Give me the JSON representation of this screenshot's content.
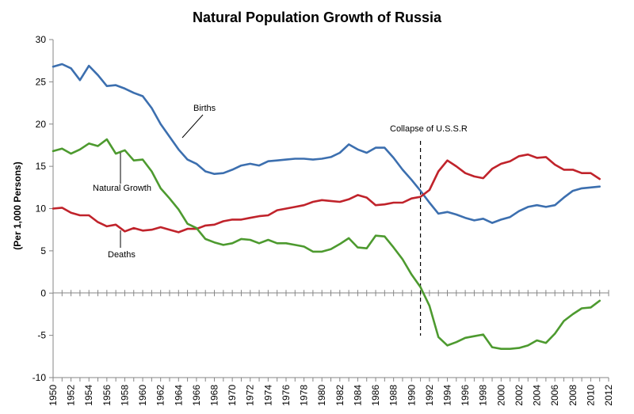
{
  "chart_data": {
    "type": "line",
    "title": "Natural Population Growth of Russia",
    "ylabel": "(Per 1,000 Persons)",
    "xlabel": "",
    "xlim": [
      1950,
      2012
    ],
    "ylim": [
      -10,
      30
    ],
    "y_ticks": [
      -10,
      -5,
      0,
      5,
      10,
      15,
      20,
      25,
      30
    ],
    "x_ticks": [
      1950,
      1952,
      1954,
      1956,
      1958,
      1960,
      1962,
      1964,
      1966,
      1968,
      1970,
      1972,
      1974,
      1976,
      1978,
      1980,
      1982,
      1984,
      1986,
      1988,
      1990,
      1992,
      1994,
      1996,
      1998,
      2000,
      2002,
      2004,
      2006,
      2008,
      2010,
      2012
    ],
    "grid": false,
    "legend": "none",
    "x": [
      1950,
      1951,
      1952,
      1953,
      1954,
      1955,
      1956,
      1957,
      1958,
      1959,
      1960,
      1961,
      1962,
      1963,
      1964,
      1965,
      1966,
      1967,
      1968,
      1969,
      1970,
      1971,
      1972,
      1973,
      1974,
      1975,
      1976,
      1977,
      1978,
      1979,
      1980,
      1981,
      1982,
      1983,
      1984,
      1985,
      1986,
      1987,
      1988,
      1989,
      1990,
      1991,
      1992,
      1993,
      1994,
      1995,
      1996,
      1997,
      1998,
      1999,
      2000,
      2001,
      2002,
      2003,
      2004,
      2005,
      2006,
      2007,
      2008,
      2009,
      2010,
      2011
    ],
    "series": [
      {
        "name": "Births",
        "color": "#3C6FAF",
        "values": [
          26.8,
          27.1,
          26.6,
          25.2,
          26.9,
          25.8,
          24.5,
          24.6,
          24.2,
          23.7,
          23.3,
          21.9,
          20.0,
          18.5,
          17.0,
          15.8,
          15.3,
          14.4,
          14.1,
          14.2,
          14.6,
          15.1,
          15.3,
          15.1,
          15.6,
          15.7,
          15.8,
          15.9,
          15.9,
          15.8,
          15.9,
          16.1,
          16.6,
          17.6,
          17.0,
          16.6,
          17.2,
          17.2,
          16.0,
          14.6,
          13.4,
          12.1,
          10.7,
          9.4,
          9.6,
          9.3,
          8.9,
          8.6,
          8.8,
          8.3,
          8.7,
          9.0,
          9.7,
          10.2,
          10.4,
          10.2,
          10.4,
          11.3,
          12.1,
          12.4,
          12.5,
          12.6
        ]
      },
      {
        "name": "Deaths",
        "color": "#C0232B",
        "values": [
          10.0,
          10.1,
          9.5,
          9.2,
          9.2,
          8.4,
          7.9,
          8.1,
          7.3,
          7.7,
          7.4,
          7.5,
          7.8,
          7.5,
          7.2,
          7.6,
          7.6,
          8.0,
          8.1,
          8.5,
          8.7,
          8.7,
          8.9,
          9.1,
          9.2,
          9.8,
          10.0,
          10.2,
          10.4,
          10.8,
          11.0,
          10.9,
          10.8,
          11.1,
          11.6,
          11.3,
          10.4,
          10.5,
          10.7,
          10.7,
          11.2,
          11.4,
          12.2,
          14.4,
          15.7,
          15.0,
          14.2,
          13.8,
          13.6,
          14.7,
          15.3,
          15.6,
          16.2,
          16.4,
          16.0,
          16.1,
          15.2,
          14.6,
          14.6,
          14.2,
          14.2,
          13.5
        ]
      },
      {
        "name": "Natural Growth",
        "color": "#4D9A2F",
        "values": [
          16.8,
          17.1,
          16.5,
          17.0,
          17.7,
          17.4,
          18.2,
          16.5,
          16.9,
          15.7,
          15.8,
          14.4,
          12.4,
          11.2,
          9.9,
          8.2,
          7.7,
          6.4,
          6.0,
          5.7,
          5.9,
          6.4,
          6.3,
          5.9,
          6.3,
          5.9,
          5.9,
          5.7,
          5.5,
          4.9,
          4.9,
          5.2,
          5.8,
          6.5,
          5.4,
          5.3,
          6.8,
          6.7,
          5.4,
          4.0,
          2.2,
          0.7,
          -1.5,
          -5.2,
          -6.2,
          -5.8,
          -5.3,
          -5.1,
          -4.9,
          -6.4,
          -6.6,
          -6.6,
          -6.5,
          -6.2,
          -5.6,
          -5.9,
          -4.8,
          -3.3,
          -2.5,
          -1.8,
          -1.7,
          -0.9
        ]
      }
    ],
    "annotations": [
      {
        "text": "Births",
        "series": "Births"
      },
      {
        "text": "Natural Growth",
        "series": "Natural Growth"
      },
      {
        "text": "Deaths",
        "series": "Deaths"
      },
      {
        "text": "Collapse of U.S.S.R",
        "x": 1991
      }
    ]
  }
}
